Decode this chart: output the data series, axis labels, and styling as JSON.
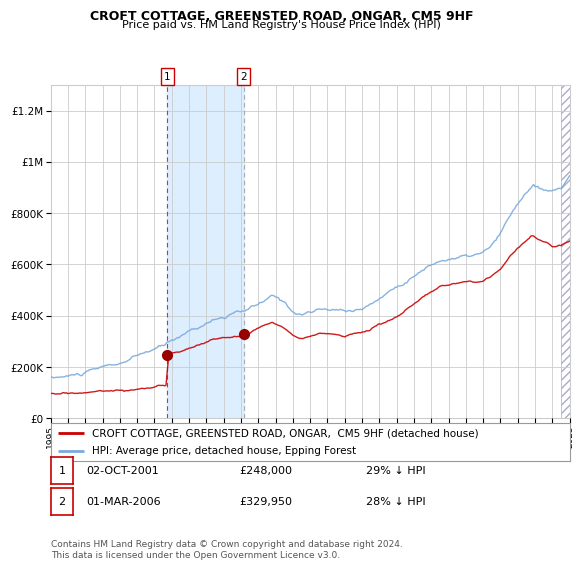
{
  "title": "CROFT COTTAGE, GREENSTED ROAD, ONGAR, CM5 9HF",
  "subtitle": "Price paid vs. HM Land Registry's House Price Index (HPI)",
  "legend_label_red": "CROFT COTTAGE, GREENSTED ROAD, ONGAR,  CM5 9HF (detached house)",
  "legend_label_blue": "HPI: Average price, detached house, Epping Forest",
  "transaction1_date": "02-OCT-2001",
  "transaction1_price": "£248,000",
  "transaction1_hpi": "29% ↓ HPI",
  "transaction2_date": "01-MAR-2006",
  "transaction2_price": "£329,950",
  "transaction2_hpi": "28% ↓ HPI",
  "footer": "Contains HM Land Registry data © Crown copyright and database right 2024.\nThis data is licensed under the Open Government Licence v3.0.",
  "red_color": "#cc0000",
  "blue_color": "#7aaadd",
  "shaded_region_color": "#ddeeff",
  "dashed1_color": "#cc3333",
  "dashed2_color": "#aaaaaa",
  "background_color": "#ffffff",
  "grid_color": "#cccccc",
  "ylim": [
    0,
    1300000
  ],
  "yticks": [
    0,
    200000,
    400000,
    600000,
    800000,
    1000000,
    1200000
  ],
  "transaction1_x": 2001.75,
  "transaction1_y": 248000,
  "transaction2_x": 2006.17,
  "transaction2_y": 329950,
  "xmin": 1995,
  "xmax": 2025
}
